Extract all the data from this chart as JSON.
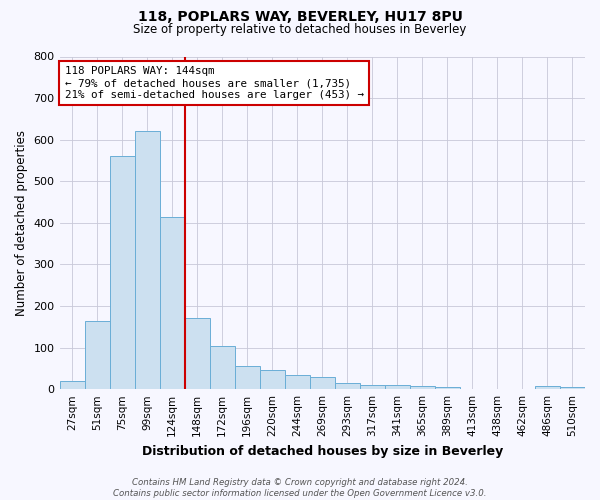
{
  "title_line1": "118, POPLARS WAY, BEVERLEY, HU17 8PU",
  "title_line2": "Size of property relative to detached houses in Beverley",
  "xlabel": "Distribution of detached houses by size in Beverley",
  "ylabel": "Number of detached properties",
  "footnote": "Contains HM Land Registry data © Crown copyright and database right 2024.\nContains public sector information licensed under the Open Government Licence v3.0.",
  "bar_labels": [
    "27sqm",
    "51sqm",
    "75sqm",
    "99sqm",
    "124sqm",
    "148sqm",
    "172sqm",
    "196sqm",
    "220sqm",
    "244sqm",
    "269sqm",
    "293sqm",
    "317sqm",
    "341sqm",
    "365sqm",
    "389sqm",
    "413sqm",
    "438sqm",
    "462sqm",
    "486sqm",
    "510sqm"
  ],
  "bar_values": [
    20,
    165,
    560,
    620,
    415,
    170,
    105,
    55,
    45,
    35,
    30,
    15,
    10,
    10,
    8,
    5,
    1,
    1,
    1,
    7,
    5
  ],
  "bar_color": "#cce0f0",
  "bar_edge_color": "#6aaed6",
  "annotation_box_text_line1": "118 POPLARS WAY: 144sqm",
  "annotation_box_text_line2": "← 79% of detached houses are smaller (1,735)",
  "annotation_box_text_line3": "21% of semi-detached houses are larger (453) →",
  "red_line_index": 4.5,
  "ylim": [
    0,
    800
  ],
  "yticks": [
    0,
    100,
    200,
    300,
    400,
    500,
    600,
    700,
    800
  ],
  "background_color": "#f7f7ff",
  "grid_color": "#c8c8d8",
  "annotation_box_color": "#ffffff",
  "annotation_box_edge_color": "#cc0000",
  "red_line_color": "#cc0000"
}
